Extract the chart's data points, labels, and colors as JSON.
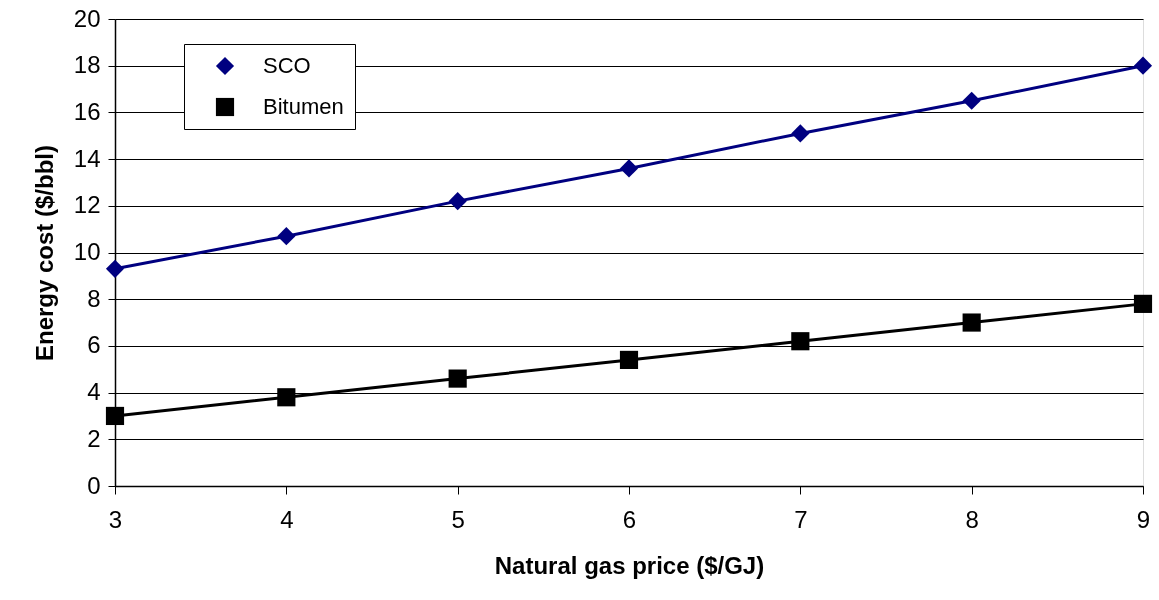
{
  "chart_data": {
    "type": "line",
    "xlabel": "Natural gas price ($/GJ)",
    "ylabel": "Energy cost ($/bbl)",
    "x": [
      3,
      4,
      5,
      6,
      7,
      8,
      9
    ],
    "series": [
      {
        "name": "SCO",
        "color": "#000080",
        "marker": "diamond",
        "values": [
          9.3,
          10.7,
          12.2,
          13.6,
          15.1,
          16.5,
          18.0
        ]
      },
      {
        "name": "Bitumen",
        "color": "#000000",
        "marker": "square",
        "values": [
          3.0,
          3.8,
          4.6,
          5.4,
          6.2,
          7.0,
          7.8
        ]
      }
    ],
    "xlim": [
      3,
      9
    ],
    "xticks": [
      3,
      4,
      5,
      6,
      7,
      8,
      9
    ],
    "ylim": [
      0,
      20
    ],
    "yticks": [
      0,
      2,
      4,
      6,
      8,
      10,
      12,
      14,
      16,
      18,
      20
    ],
    "grid": "y",
    "legend": "top left",
    "line_style": "solid"
  }
}
